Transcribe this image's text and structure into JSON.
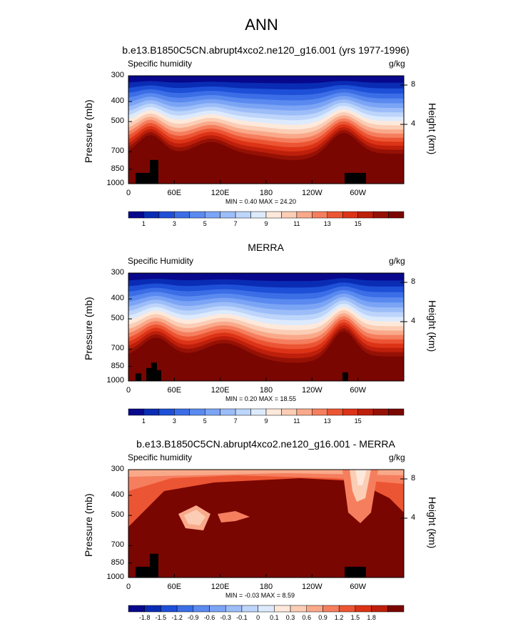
{
  "main_title": "ANN",
  "chart_data": [
    {
      "type": "heatmap",
      "title": "b.e13.B1850C5CN.abrupt4xco2.ne120_g16.001 (yrs 1977-1996)",
      "variable_label": "Specific humidity",
      "units": "g/kg",
      "ylabel": "Pressure (mb)",
      "ylabel_right": "Height (km)",
      "x_ticks": [
        "0",
        "60E",
        "120E",
        "180",
        "120W",
        "60W"
      ],
      "y_ticks": [
        "300",
        "400",
        "500",
        "700",
        "850",
        "1000"
      ],
      "y_right_ticks": [
        "8",
        "4"
      ],
      "stats": "MIN =   0.40  MAX =  24.20",
      "min": 0.4,
      "max": 24.2,
      "colorbar_labels": [
        "1",
        "3",
        "5",
        "7",
        "9",
        "11",
        "13",
        "15"
      ],
      "colorbar_colors": [
        "#08088c",
        "#0a2cb4",
        "#1e4fd7",
        "#3b6ee6",
        "#5a8af0",
        "#7ba4f5",
        "#9cbdf8",
        "#bdd5fb",
        "#ddeafd",
        "#fde9dc",
        "#fbcdb4",
        "#f9a98a",
        "#f57e5e",
        "#ec5533",
        "#dc3317",
        "#bd1f0b",
        "#961105",
        "#7a0602"
      ]
    },
    {
      "type": "heatmap",
      "title": "MERRA",
      "variable_label": "Specific Humidity",
      "units": "g/kg",
      "ylabel": "Pressure (mb)",
      "ylabel_right": "Height (km)",
      "x_ticks": [
        "0",
        "60E",
        "120E",
        "180",
        "120W",
        "60W"
      ],
      "y_ticks": [
        "300",
        "400",
        "500",
        "700",
        "850",
        "1000"
      ],
      "y_right_ticks": [
        "8",
        "4"
      ],
      "stats": "MIN =   0.20  MAX =  18.55",
      "min": 0.2,
      "max": 18.55,
      "colorbar_labels": [
        "1",
        "3",
        "5",
        "7",
        "9",
        "11",
        "13",
        "15"
      ],
      "colorbar_colors": [
        "#08088c",
        "#0a2cb4",
        "#1e4fd7",
        "#3b6ee6",
        "#5a8af0",
        "#7ba4f5",
        "#9cbdf8",
        "#bdd5fb",
        "#ddeafd",
        "#fde9dc",
        "#fbcdb4",
        "#f9a98a",
        "#f57e5e",
        "#ec5533",
        "#dc3317",
        "#bd1f0b",
        "#961105",
        "#7a0602"
      ]
    },
    {
      "type": "heatmap",
      "title": "b.e13.B1850C5CN.abrupt4xco2.ne120_g16.001 - MERRA",
      "variable_label": "Specific humidity",
      "units": "g/kg",
      "ylabel": "Pressure (mb)",
      "ylabel_right": "Height (km)",
      "x_ticks": [
        "0",
        "60E",
        "120E",
        "180",
        "120W",
        "60W"
      ],
      "y_ticks": [
        "300",
        "400",
        "500",
        "700",
        "850",
        "1000"
      ],
      "y_right_ticks": [
        "8",
        "4"
      ],
      "stats": "MIN =  -0.03  MAX =   8.59",
      "min": -0.03,
      "max": 8.59,
      "colorbar_labels": [
        "-1.8",
        "-1.5",
        "-1.2",
        "-0.9",
        "-0.6",
        "-0.3",
        "-0.1",
        "0",
        "0.1",
        "0.3",
        "0.6",
        "0.9",
        "1.2",
        "1.5",
        "1.8"
      ],
      "colorbar_colors": [
        "#08088c",
        "#0a2cb4",
        "#1e4fd7",
        "#3b6ee6",
        "#5a8af0",
        "#7ba4f5",
        "#9cbdf8",
        "#bdd5fb",
        "#ddeafd",
        "#fde9dc",
        "#fbcdb4",
        "#f9a98a",
        "#f57e5e",
        "#ec5533",
        "#dc3317",
        "#bd1f0b",
        "#7a0602"
      ]
    }
  ]
}
